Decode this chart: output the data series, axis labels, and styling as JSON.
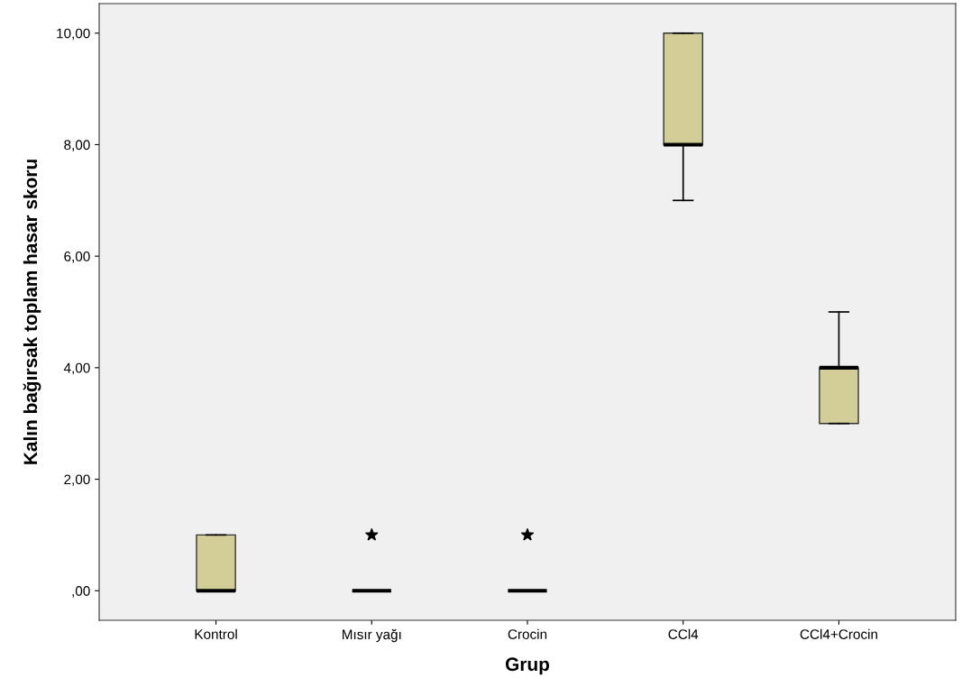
{
  "chart_data": {
    "type": "box",
    "xlabel": "Grup",
    "ylabel": "Kalın bağırsak toplam hasar skoru",
    "categories": [
      "Kontrol",
      "Mısır yağı",
      "Crocin",
      "CCl4",
      "CCl4+Crocin"
    ],
    "boxes": [
      {
        "low": 0,
        "q1": 0,
        "median": 0,
        "q3": 1,
        "high": 1
      },
      {
        "low": 0,
        "q1": 0,
        "median": 0,
        "q3": 0,
        "high": 0,
        "outliers": [
          1
        ]
      },
      {
        "low": 0,
        "q1": 0,
        "median": 0,
        "q3": 0,
        "high": 0,
        "outliers": [
          1
        ]
      },
      {
        "low": 7,
        "q1": 8,
        "median": 8,
        "q3": 10,
        "high": 10
      },
      {
        "low": 3,
        "q1": 3,
        "median": 4,
        "q3": 4,
        "high": 5
      }
    ],
    "color": "#d3ce97",
    "marker": "star",
    "grid": false,
    "ylim": [
      -0.53,
      10.53
    ],
    "yticks": [
      {
        "value": 0,
        "label": ",00"
      },
      {
        "value": 2,
        "label": "2,00"
      },
      {
        "value": 4,
        "label": "4,00"
      },
      {
        "value": 6,
        "label": "6,00"
      },
      {
        "value": 8,
        "label": "8,00"
      },
      {
        "value": 10,
        "label": "10,00"
      }
    ]
  }
}
